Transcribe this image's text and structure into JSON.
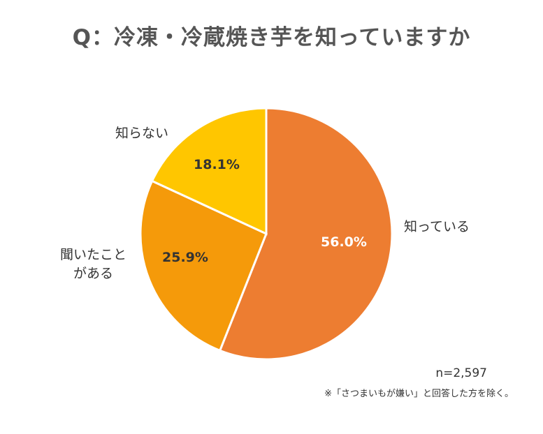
{
  "title": "Q：冷凍・冷蔵焼き芋を知っていますか",
  "chart_data": {
    "type": "pie",
    "slices": [
      {
        "label": "知っている",
        "value": 56.0,
        "display": "56.0%",
        "color": "#ED7D31"
      },
      {
        "label": "聞いたことがある",
        "label_lines": [
          "聞いたこと",
          "がある"
        ],
        "value": 25.9,
        "display": "25.9%",
        "color": "#F59A0A"
      },
      {
        "label": "知らない",
        "value": 18.1,
        "display": "18.1%",
        "color": "#FFC600"
      }
    ]
  },
  "sample_size": "n=2,597",
  "note": "※「さつまいもが嫌い」と回答した方を除く。"
}
